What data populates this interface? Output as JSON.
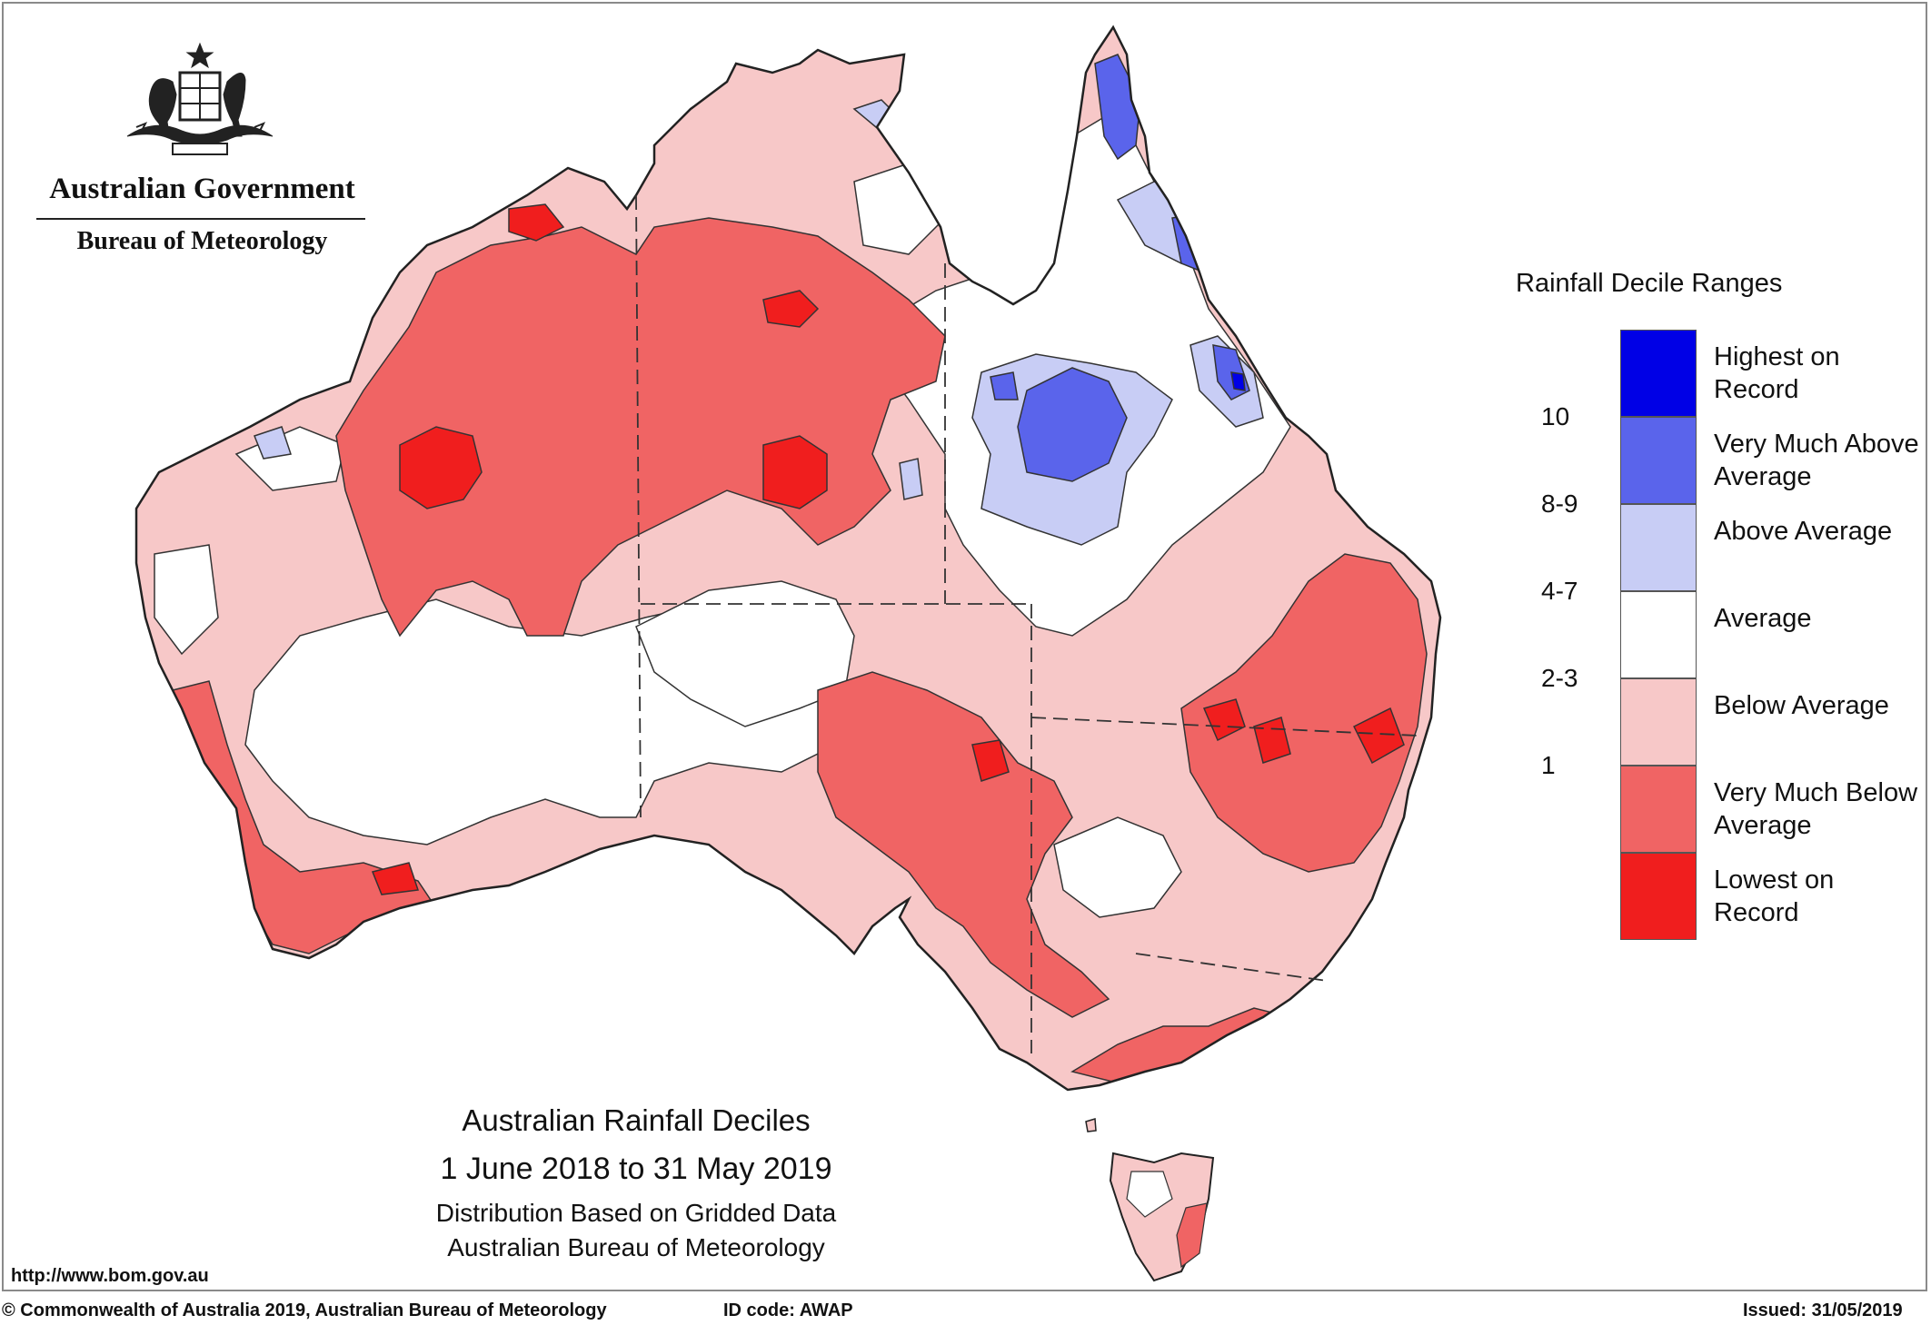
{
  "header": {
    "government": "Australian Government",
    "agency": "Bureau of Meteorology"
  },
  "legend": {
    "title": "Rainfall Decile Ranges",
    "items": [
      {
        "label": "Highest on Record",
        "color": "#0000e6",
        "range": ""
      },
      {
        "label": "Very Much Above Average",
        "color": "#5a64eb",
        "range": "10"
      },
      {
        "label": "Above Average",
        "color": "#c8cdf5",
        "range": "8-9"
      },
      {
        "label": "Average",
        "color": "#ffffff",
        "range": "4-7"
      },
      {
        "label": "Below Average",
        "color": "#f7c8c8",
        "range": "2-3"
      },
      {
        "label": "Very Much Below Average",
        "color": "#f06464",
        "range": "1"
      },
      {
        "label": "Lowest on Record",
        "color": "#f01e1e",
        "range": ""
      }
    ]
  },
  "caption": {
    "title": "Australian Rainfall Deciles",
    "period": "1 June 2018 to 31 May 2019",
    "method": "Distribution Based on Gridded Data",
    "source": "Australian Bureau of Meteorology"
  },
  "url": "http://www.bom.gov.au",
  "footer": {
    "copyright": "© Commonwealth of Australia 2019, Australian Bureau of Meteorology",
    "id_code": "ID code: AWAP",
    "issued": "Issued: 31/05/2019"
  },
  "colors": {
    "coast": "#222222",
    "borders": "#333333"
  }
}
